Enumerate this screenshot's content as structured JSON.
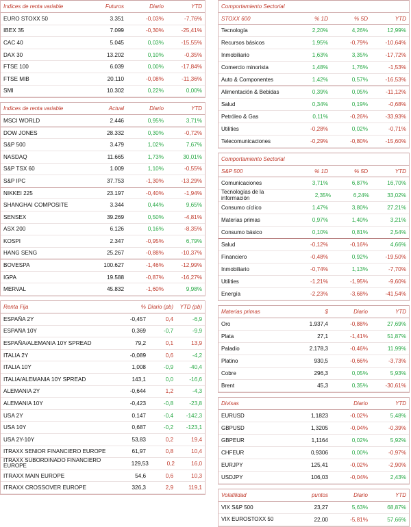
{
  "futuros": {
    "header": {
      "name": "Índices de renta variable",
      "c1": "Futuros",
      "c2": "Diario",
      "c3": "YTD"
    },
    "rows": [
      {
        "name": "EURO STOXX 50",
        "v": "3.351",
        "d": "-0,03%",
        "y": "-7,76%",
        "dc": "neg",
        "yc": "neg"
      },
      {
        "name": "IBEX 35",
        "v": "7.099",
        "d": "-0,30%",
        "y": "-25,41%",
        "dc": "neg",
        "yc": "neg"
      },
      {
        "name": "CAC 40",
        "v": "5.045",
        "d": "0,03%",
        "y": "-15,55%",
        "dc": "pos",
        "yc": "neg"
      },
      {
        "name": "DAX 30",
        "v": "13.202",
        "d": "0,10%",
        "y": "-0,35%",
        "dc": "pos",
        "yc": "neg"
      },
      {
        "name": "FTSE 100",
        "v": "6.039",
        "d": "0,00%",
        "y": "-17,84%",
        "dc": "pos",
        "yc": "neg"
      },
      {
        "name": "FTSE MIB",
        "v": "20.110",
        "d": "-0,08%",
        "y": "-11,36%",
        "dc": "neg",
        "yc": "neg"
      },
      {
        "name": "SMI",
        "v": "10.302",
        "d": "0,22%",
        "y": "0,00%",
        "dc": "pos",
        "yc": "pos"
      }
    ]
  },
  "actual": {
    "header": {
      "name": "Índices de renta variable",
      "c1": "Actual",
      "c2": "Diario",
      "c3": "YTD"
    },
    "rows": [
      {
        "name": "MSCI WORLD",
        "v": "2.446",
        "d": "0,95%",
        "y": "3,71%",
        "dc": "pos",
        "yc": "pos",
        "sep": true
      },
      {
        "name": "DOW JONES",
        "v": "28.332",
        "d": "0,30%",
        "y": "-0,72%",
        "dc": "pos",
        "yc": "neg"
      },
      {
        "name": "S&P 500",
        "v": "3.479",
        "d": "1,02%",
        "y": "7,67%",
        "dc": "pos",
        "yc": "pos"
      },
      {
        "name": "NASDAQ",
        "v": "11.665",
        "d": "1,73%",
        "y": "30,01%",
        "dc": "pos",
        "yc": "pos"
      },
      {
        "name": "S&P TSX 60",
        "v": "1.009",
        "d": "1,10%",
        "y": "-0,55%",
        "dc": "pos",
        "yc": "neg"
      },
      {
        "name": "S&P IPC",
        "v": "37.753",
        "d": "-1,30%",
        "y": "-13,29%",
        "dc": "neg",
        "yc": "neg",
        "sep": true
      },
      {
        "name": "NIKKEI 225",
        "v": "23.197",
        "d": "-0,40%",
        "y": "-1,94%",
        "dc": "neg",
        "yc": "neg"
      },
      {
        "name": "SHANGHAI COMPOSITE",
        "v": "3.344",
        "d": "0,44%",
        "y": "9,65%",
        "dc": "pos",
        "yc": "pos"
      },
      {
        "name": "SENSEX",
        "v": "39.269",
        "d": "0,50%",
        "y": "-4,81%",
        "dc": "pos",
        "yc": "neg"
      },
      {
        "name": "ASX 200",
        "v": "6.126",
        "d": "0,16%",
        "y": "-8,35%",
        "dc": "pos",
        "yc": "neg"
      },
      {
        "name": "KOSPI",
        "v": "2.347",
        "d": "-0,95%",
        "y": "6,79%",
        "dc": "neg",
        "yc": "pos"
      },
      {
        "name": "HANG SENG",
        "v": "25.267",
        "d": "-0,88%",
        "y": "-10,37%",
        "dc": "neg",
        "yc": "neg",
        "sep": true
      },
      {
        "name": "BOVESPA",
        "v": "100.627",
        "d": "-1,46%",
        "y": "-12,99%",
        "dc": "neg",
        "yc": "neg"
      },
      {
        "name": "IGPA",
        "v": "19.588",
        "d": "-0,87%",
        "y": "-16,27%",
        "dc": "neg",
        "yc": "neg"
      },
      {
        "name": "MERVAL",
        "v": "45.832",
        "d": "-1,60%",
        "y": "9,98%",
        "dc": "neg",
        "yc": "pos"
      }
    ]
  },
  "renta_fija": {
    "header": {
      "name": "Renta Fija",
      "c1": "%",
      "c2": "Diario (pb)",
      "c3": "YTD (pb)"
    },
    "rows": [
      {
        "name": "ESPAÑA 2Y",
        "v": "-0,457",
        "d": "0,4",
        "y": "-6,9",
        "dc": "neg",
        "yc": "pos"
      },
      {
        "name": "ESPAÑA 10Y",
        "v": "0,369",
        "d": "-0,7",
        "y": "-9,9",
        "dc": "pos",
        "yc": "pos"
      },
      {
        "name": "ESPAÑA/ALEMANIA 10Y SPREAD",
        "v": "79,2",
        "d": "0,1",
        "y": "13,9",
        "dc": "neg",
        "yc": "neg"
      },
      {
        "name": "ITALIA 2Y",
        "v": "-0,089",
        "d": "0,6",
        "y": "-4,2",
        "dc": "neg",
        "yc": "pos"
      },
      {
        "name": "ITALIA 10Y",
        "v": "1,008",
        "d": "-0,9",
        "y": "-40,4",
        "dc": "pos",
        "yc": "pos"
      },
      {
        "name": "ITALIA/ALEMANIA 10Y SPREAD",
        "v": "143,1",
        "d": "0,0",
        "y": "-16,6",
        "dc": "pos",
        "yc": "pos"
      },
      {
        "name": "ALEMANIA 2Y",
        "v": "-0,644",
        "d": "1,2",
        "y": "-4,3",
        "dc": "neg",
        "yc": "pos"
      },
      {
        "name": "ALEMANIA 10Y",
        "v": "-0,423",
        "d": "-0,8",
        "y": "-23,8",
        "dc": "pos",
        "yc": "pos"
      },
      {
        "name": "USA 2Y",
        "v": "0,147",
        "d": "-0,4",
        "y": "-142,3",
        "dc": "pos",
        "yc": "pos"
      },
      {
        "name": "USA 10Y",
        "v": "0,687",
        "d": "-0,2",
        "y": "-123,1",
        "dc": "pos",
        "yc": "pos"
      },
      {
        "name": "USA 2Y-10Y",
        "v": "53,83",
        "d": "0,2",
        "y": "19,4",
        "dc": "neg",
        "yc": "neg"
      },
      {
        "name": "ITRAXX SENIOR FINANCIERO EUROPE",
        "v": "61,97",
        "d": "0,8",
        "y": "10,4",
        "dc": "neg",
        "yc": "neg",
        "wrap": true
      },
      {
        "name": "ITRAXX SUBORDINADO FINANCIERO EUROPE",
        "v": "129,53",
        "d": "0,2",
        "y": "16,0",
        "dc": "neg",
        "yc": "neg",
        "wrap": true
      },
      {
        "name": "ITRAXX MAIN EUROPE",
        "v": "54,6",
        "d": "0,6",
        "y": "10,3",
        "dc": "neg",
        "yc": "neg"
      },
      {
        "name": "ITRAXX CROSSOVER EUROPE",
        "v": "326,3",
        "d": "2,9",
        "y": "119,1",
        "dc": "neg",
        "yc": "neg"
      }
    ]
  },
  "stoxx": {
    "title": "Comportamiento Sectorial",
    "header": {
      "name": "STOXX 600",
      "c1": "% 1D",
      "c2": "% 5D",
      "c3": "YTD"
    },
    "rows": [
      {
        "name": "Tecnología",
        "v": "2,20%",
        "d": "4,26%",
        "y": "12,99%",
        "vc": "pos",
        "dc": "pos",
        "yc": "pos"
      },
      {
        "name": "Recursos básicos",
        "v": "1,95%",
        "d": "-0,79%",
        "y": "-10,64%",
        "vc": "pos",
        "dc": "neg",
        "yc": "neg"
      },
      {
        "name": "Inmobiliario",
        "v": "1,63%",
        "d": "3,35%",
        "y": "-17,72%",
        "vc": "pos",
        "dc": "pos",
        "yc": "neg"
      },
      {
        "name": "Comercio minorista",
        "v": "1,48%",
        "d": "1,76%",
        "y": "-1,53%",
        "vc": "pos",
        "dc": "pos",
        "yc": "neg"
      },
      {
        "name": "Auto & Componentes",
        "v": "1,42%",
        "d": "0,57%",
        "y": "-16,53%",
        "vc": "pos",
        "dc": "pos",
        "yc": "neg",
        "sep": true
      },
      {
        "name": "Alimentación & Bebidas",
        "v": "0,39%",
        "d": "0,05%",
        "y": "-11,12%",
        "vc": "pos",
        "dc": "pos",
        "yc": "neg"
      },
      {
        "name": "Salud",
        "v": "0,34%",
        "d": "0,19%",
        "y": "-0,68%",
        "vc": "pos",
        "dc": "pos",
        "yc": "neg"
      },
      {
        "name": "Petróleo & Gas",
        "v": "0,11%",
        "d": "-0,26%",
        "y": "-33,93%",
        "vc": "pos",
        "dc": "neg",
        "yc": "neg"
      },
      {
        "name": "Utilities",
        "v": "-0,28%",
        "d": "0,02%",
        "y": "-0,71%",
        "vc": "neg",
        "dc": "pos",
        "yc": "neg"
      },
      {
        "name": "Telecomunicaciones",
        "v": "-0,29%",
        "d": "-0,80%",
        "y": "-15,60%",
        "vc": "neg",
        "dc": "neg",
        "yc": "neg"
      }
    ]
  },
  "sp500": {
    "title": "Comportamiento Sectorial",
    "header": {
      "name": "S&P 500",
      "c1": "% 1D",
      "c2": "% 5D",
      "c3": "YTD"
    },
    "rows": [
      {
        "name": "Comunicaciones",
        "v": "3,71%",
        "d": "6,87%",
        "y": "16,70%",
        "vc": "pos",
        "dc": "pos",
        "yc": "pos"
      },
      {
        "name": "Tecnologías de la información",
        "v": "2,35%",
        "d": "6,24%",
        "y": "33,02%",
        "vc": "pos",
        "dc": "pos",
        "yc": "pos",
        "wrap": true
      },
      {
        "name": "Consumo cíclico",
        "v": "1,47%",
        "d": "3,80%",
        "y": "27,21%",
        "vc": "pos",
        "dc": "pos",
        "yc": "pos"
      },
      {
        "name": "Materias primas",
        "v": "0,97%",
        "d": "1,40%",
        "y": "3,21%",
        "vc": "pos",
        "dc": "pos",
        "yc": "pos"
      },
      {
        "name": "Consumo básico",
        "v": "0,10%",
        "d": "0,81%",
        "y": "2,54%",
        "vc": "pos",
        "dc": "pos",
        "yc": "pos",
        "sep": true
      },
      {
        "name": "Salud",
        "v": "-0,12%",
        "d": "-0,16%",
        "y": "4,66%",
        "vc": "neg",
        "dc": "neg",
        "yc": "pos"
      },
      {
        "name": "Financiero",
        "v": "-0,48%",
        "d": "0,92%",
        "y": "-19,50%",
        "vc": "neg",
        "dc": "pos",
        "yc": "neg"
      },
      {
        "name": "Inmobiliario",
        "v": "-0,74%",
        "d": "1,13%",
        "y": "-7,70%",
        "vc": "neg",
        "dc": "pos",
        "yc": "neg"
      },
      {
        "name": "Utilities",
        "v": "-1,21%",
        "d": "-1,95%",
        "y": "-9,60%",
        "vc": "neg",
        "dc": "neg",
        "yc": "neg"
      },
      {
        "name": "Energía",
        "v": "-2,23%",
        "d": "-3,68%",
        "y": "-41,54%",
        "vc": "neg",
        "dc": "neg",
        "yc": "neg"
      }
    ]
  },
  "materias": {
    "header": {
      "name": "Materias primas",
      "c1": "$",
      "c2": "Diario",
      "c3": "YTD"
    },
    "rows": [
      {
        "name": "Oro",
        "v": "1.937,4",
        "d": "-0,88%",
        "y": "27,69%",
        "dc": "neg",
        "yc": "pos"
      },
      {
        "name": "Plata",
        "v": "27,1",
        "d": "-1,41%",
        "y": "51,87%",
        "dc": "neg",
        "yc": "pos"
      },
      {
        "name": "Paladio",
        "v": "2.178,3",
        "d": "-0,46%",
        "y": "11,99%",
        "dc": "neg",
        "yc": "pos"
      },
      {
        "name": "Platino",
        "v": "930,5",
        "d": "-0,66%",
        "y": "-3,73%",
        "dc": "neg",
        "yc": "neg"
      },
      {
        "name": "Cobre",
        "v": "296,3",
        "d": "0,05%",
        "y": "5,93%",
        "dc": "pos",
        "yc": "pos"
      },
      {
        "name": "Brent",
        "v": "45,3",
        "d": "0,35%",
        "y": "-30,61%",
        "dc": "pos",
        "yc": "neg"
      }
    ]
  },
  "divisas": {
    "header": {
      "name": "Divisas",
      "c1": "",
      "c2": "Diario",
      "c3": "YTD"
    },
    "rows": [
      {
        "name": "EURUSD",
        "v": "1,1823",
        "d": "-0,02%",
        "y": "5,48%",
        "dc": "neg",
        "yc": "pos"
      },
      {
        "name": "GBPUSD",
        "v": "1,3205",
        "d": "-0,04%",
        "y": "-0,39%",
        "dc": "neg",
        "yc": "neg"
      },
      {
        "name": "GBPEUR",
        "v": "1,1164",
        "d": "0,02%",
        "y": "5,92%",
        "dc": "pos",
        "yc": "pos"
      },
      {
        "name": "CHFEUR",
        "v": "0,9306",
        "d": "0,00%",
        "y": "-0,97%",
        "dc": "pos",
        "yc": "neg"
      },
      {
        "name": "EURJPY",
        "v": "125,41",
        "d": "-0,02%",
        "y": "-2,90%",
        "dc": "neg",
        "yc": "neg"
      },
      {
        "name": "USDJPY",
        "v": "106,03",
        "d": "-0,04%",
        "y": "2,43%",
        "dc": "neg",
        "yc": "pos"
      }
    ]
  },
  "volatilidad": {
    "header": {
      "name": "Volatilidad",
      "c1": "puntos",
      "c2": "Diario",
      "c3": "YTD"
    },
    "rows": [
      {
        "name": "VIX S&P 500",
        "v": "23,27",
        "d": "5,63%",
        "y": "68,87%",
        "dc": "pos",
        "yc": "pos"
      },
      {
        "name": "VIX EUROSTOXX 50",
        "v": "22,00",
        "d": "-5,81%",
        "y": "57,66%",
        "dc": "neg",
        "yc": "pos",
        "wrap": true
      }
    ]
  },
  "colors": {
    "neg": "#c0392b",
    "pos": "#27a844",
    "header": "#c0392b"
  }
}
